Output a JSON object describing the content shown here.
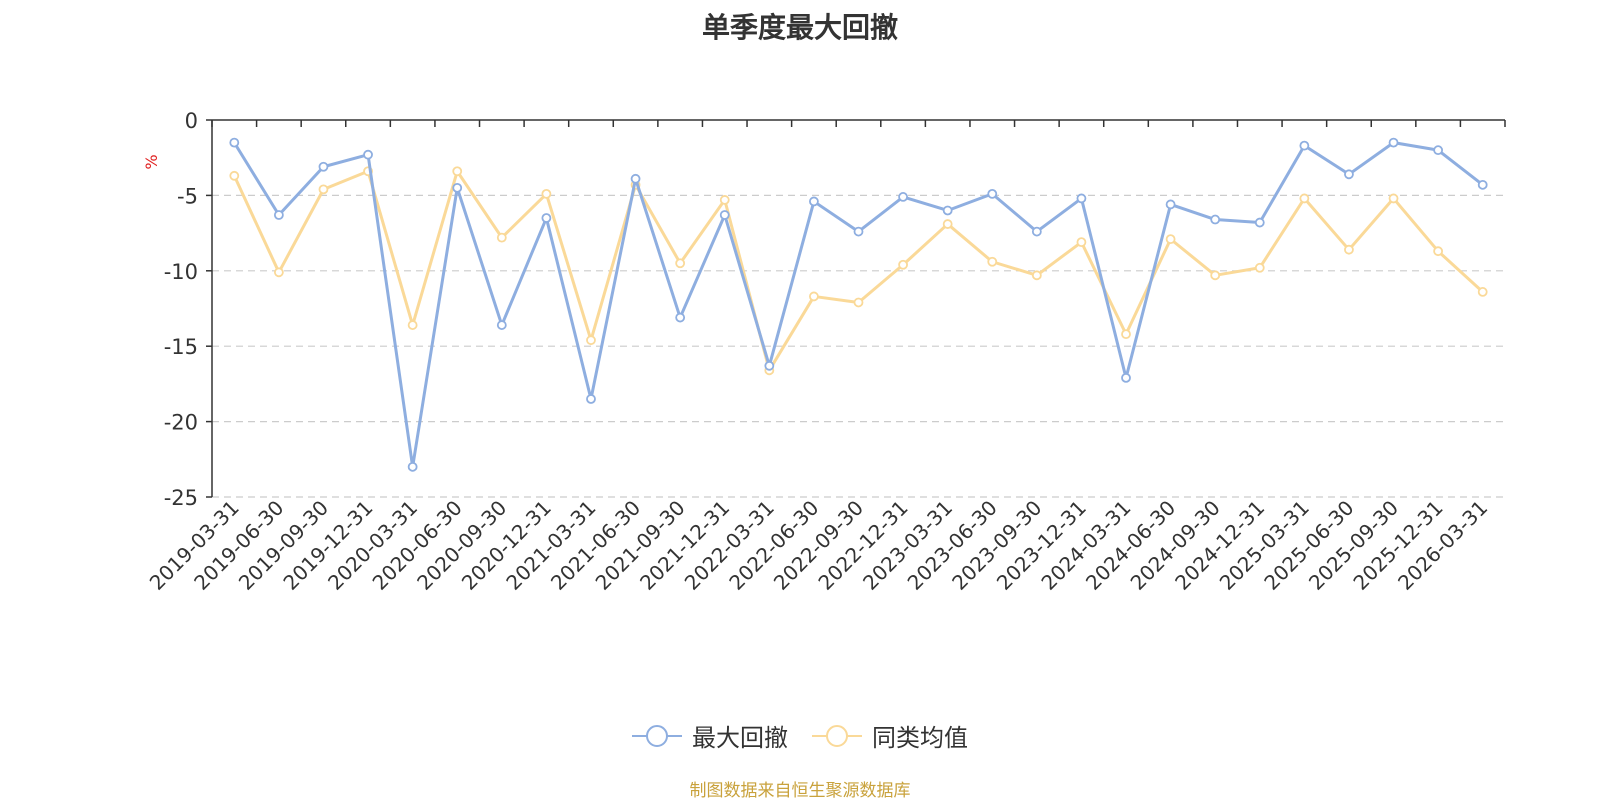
{
  "chart_data": {
    "type": "line",
    "title": "单季度最大回撤",
    "ylabel": "%",
    "xlabel": "",
    "ylim": [
      -25,
      0
    ],
    "yticks": [
      0,
      -5,
      -10,
      -15,
      -20,
      -25
    ],
    "categories": [
      "2019-03-31",
      "2019-06-30",
      "2019-09-30",
      "2019-12-31",
      "2020-03-31",
      "2020-06-30",
      "2020-09-30",
      "2020-12-31",
      "2021-03-31",
      "2021-06-30",
      "2021-09-30",
      "2021-12-31",
      "2022-03-31",
      "2022-06-30",
      "2022-09-30",
      "2022-12-31",
      "2023-03-31",
      "2023-06-30",
      "2023-09-30",
      "2023-12-31",
      "2024-03-31",
      "2024-06-30",
      "2024-09-30",
      "2024-12-31",
      "2025-03-31",
      "2025-06-30",
      "2025-09-30",
      "2025-12-31",
      "2026-03-31"
    ],
    "series": [
      {
        "name": "最大回撤",
        "color": "#8eaee0",
        "values": [
          -1.5,
          -6.3,
          -3.1,
          -2.3,
          -23.0,
          -4.5,
          -13.6,
          -6.5,
          -18.5,
          -3.9,
          -13.1,
          -6.3,
          -16.3,
          -5.4,
          -7.4,
          -5.1,
          -6.0,
          -4.9,
          -7.4,
          -5.2,
          -17.1,
          -5.6,
          -6.6,
          -6.8,
          -1.7,
          -3.6,
          -1.5,
          -2.0,
          -4.3
        ]
      },
      {
        "name": "同类均值",
        "color": "#fad998",
        "values": [
          -3.7,
          -10.1,
          -4.6,
          -3.4,
          -13.6,
          -3.4,
          -7.8,
          -4.9,
          -14.6,
          -4.3,
          -9.5,
          -5.3,
          -16.6,
          -11.7,
          -12.1,
          -9.6,
          -6.9,
          -9.4,
          -10.3,
          -8.1,
          -14.2,
          -7.9,
          -10.3,
          -9.8,
          -5.2,
          -8.6,
          -5.2,
          -8.7,
          -11.4
        ]
      }
    ],
    "source": "制图数据来自恒生聚源数据库"
  }
}
